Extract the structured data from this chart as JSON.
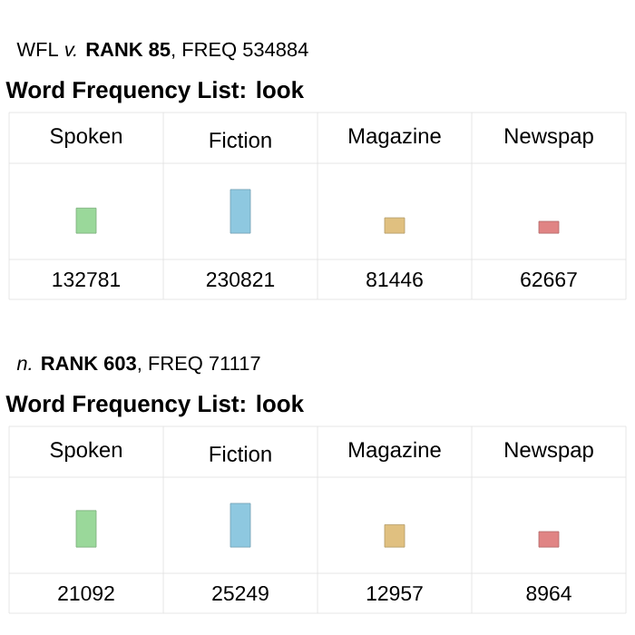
{
  "chart_data": [
    {
      "type": "bar",
      "subtitle": "WFL *v.* **RANK 85**, FREQ 534884",
      "title": "**Word Frequency List:** look",
      "categories": [
        "Spoken",
        "Fiction",
        "Magazine",
        "Newspap"
      ],
      "values": [
        132781,
        230821,
        81446,
        62667
      ],
      "colors": [
        "#9ad89a",
        "#8ec8e0",
        "#e0c080",
        "#e08484"
      ],
      "data_labels": true,
      "tick_labels": "x"
    },
    {
      "type": "bar",
      "subtitle": "*n.* **RANK 603**, FREQ 71117",
      "title": "**Word Frequency List:** look",
      "categories": [
        "Spoken",
        "Fiction",
        "Magazine",
        "Newspap"
      ],
      "values": [
        21092,
        25249,
        12957,
        8964
      ],
      "colors": [
        "#9ad89a",
        "#8ec8e0",
        "#e0c080",
        "#e08484"
      ],
      "data_labels": true,
      "tick_labels": "x"
    }
  ]
}
